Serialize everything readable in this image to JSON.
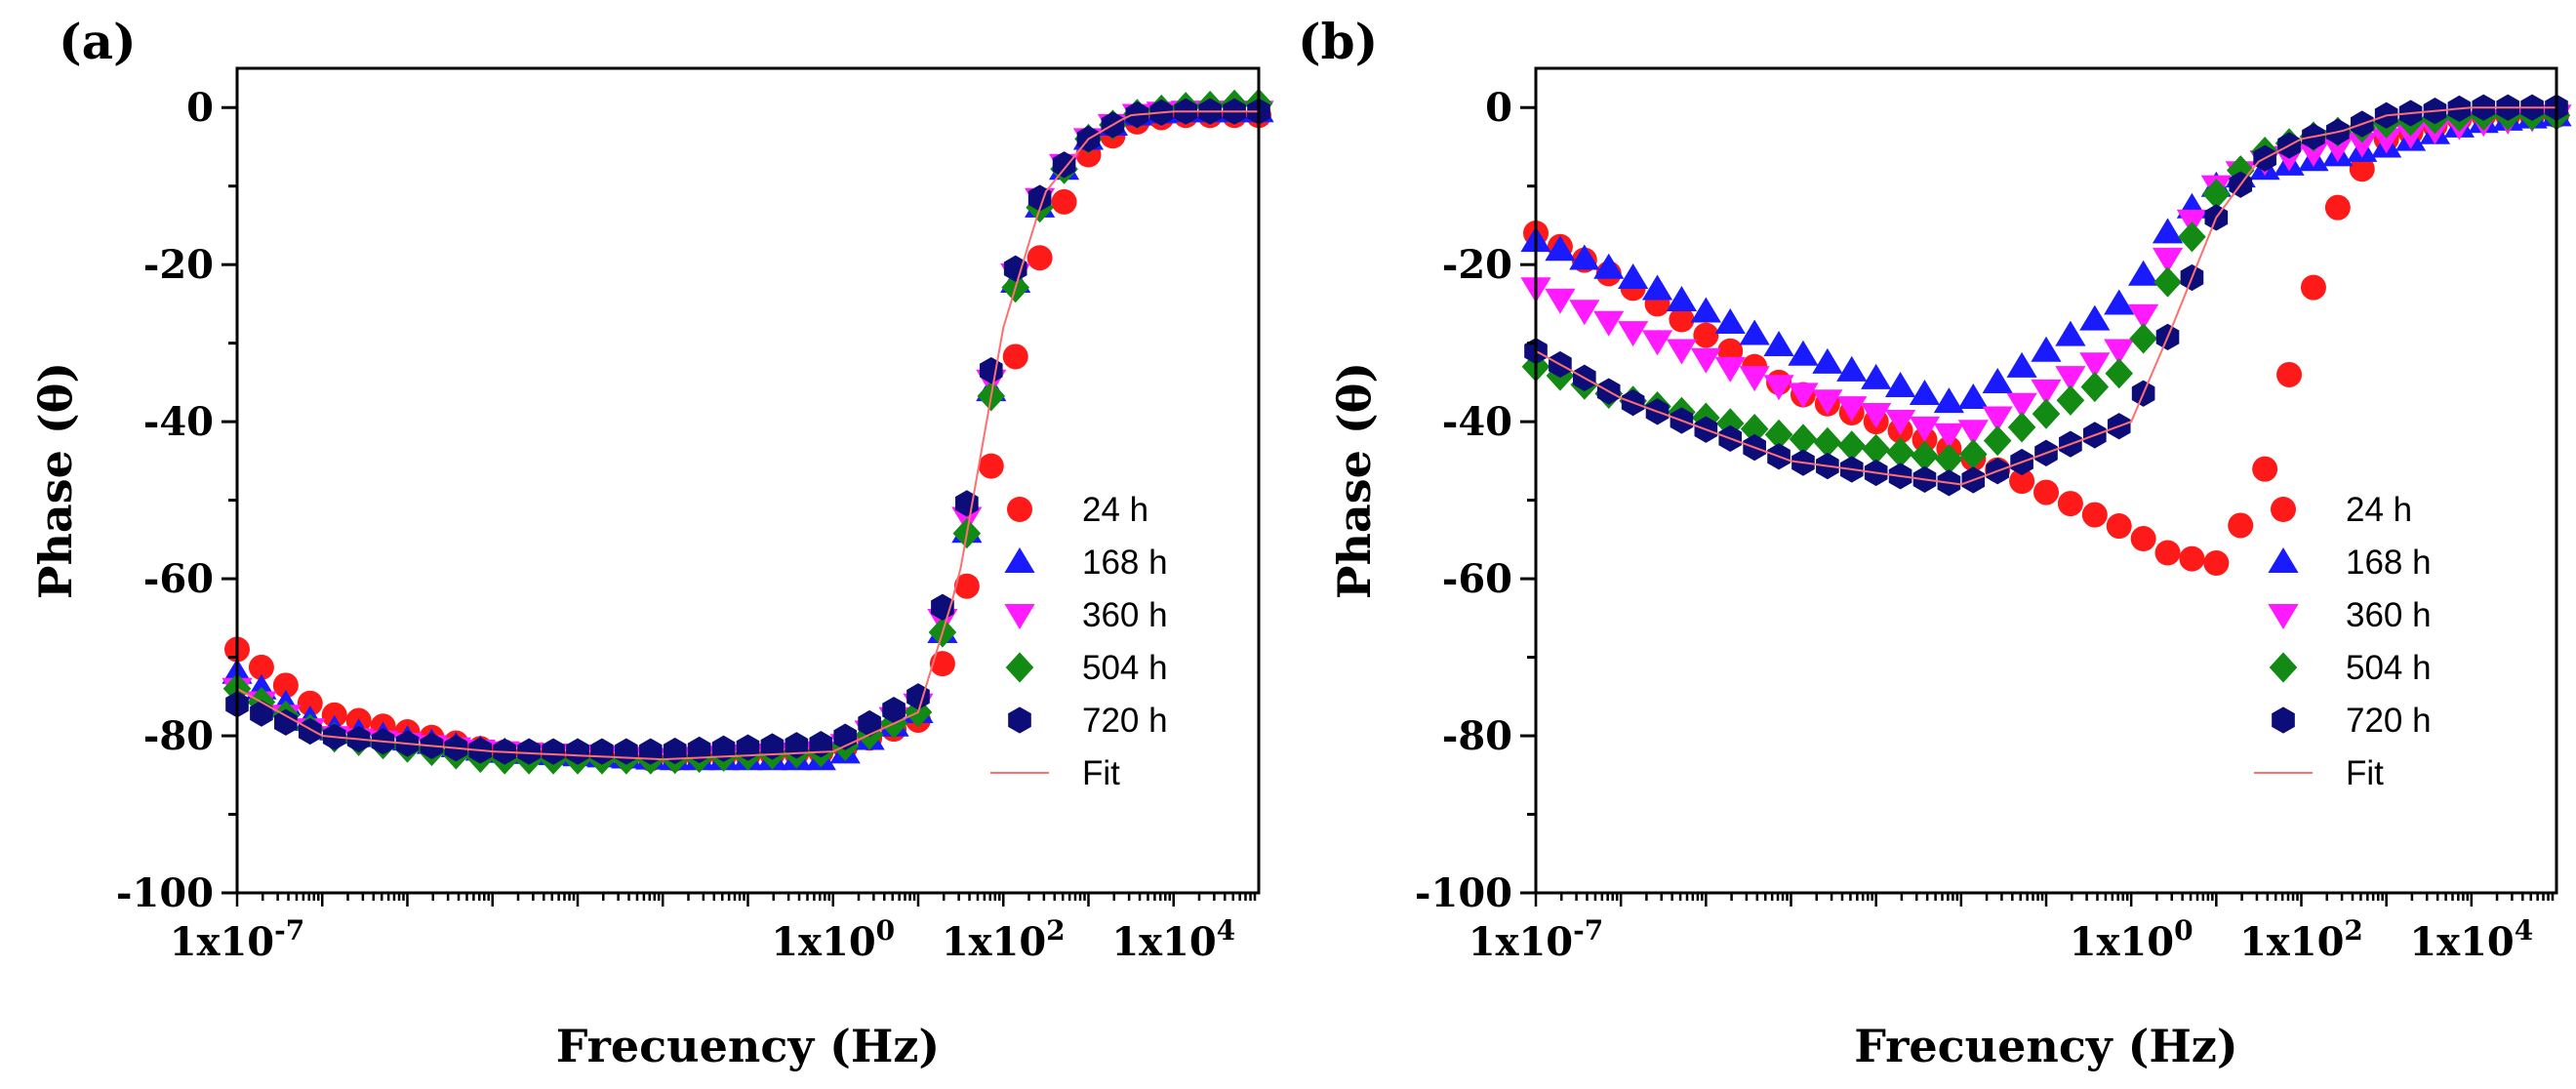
{
  "chart_data": [
    {
      "type": "scatter",
      "panel_label": "(a)",
      "xlabel": "Frecuency (Hz)",
      "ylabel": "Phase (θ)",
      "xscale": "log",
      "xlim": [
        1e-07,
        100000.0
      ],
      "ylim": [
        -100,
        5
      ],
      "x_ticks": [
        1e-07,
        1,
        100,
        10000
      ],
      "x_tick_labels": [
        "1x10-7",
        "1x100",
        "1x102",
        "1x104"
      ],
      "y_ticks": [
        0,
        -20,
        -40,
        -60,
        -80,
        -100
      ],
      "y_tick_labels": [
        "0",
        "-20",
        "-40",
        "-60",
        "-80",
        "-100"
      ],
      "legend_position": "center-right",
      "series": [
        {
          "name": "24 h",
          "color": "#ff1a1a",
          "marker": "circle",
          "x": [
            1e-07,
            1e-06,
            0.0001,
            0.01,
            1,
            10,
            30,
            100,
            300,
            1000,
            3000,
            10000.0,
            100000.0
          ],
          "y": [
            -69,
            -77,
            -82,
            -83,
            -82,
            -78,
            -66,
            -38,
            -17,
            -6,
            -2,
            -1,
            -1
          ]
        },
        {
          "name": "168 h",
          "color": "#1a1aff",
          "marker": "triangle-up",
          "x": [
            1e-07,
            1e-06,
            0.0001,
            0.01,
            1,
            10,
            30,
            100,
            300,
            1000,
            3000,
            10000.0,
            100000.0
          ],
          "y": [
            -72,
            -79,
            -82,
            -83,
            -83,
            -77,
            -60,
            -27,
            -11,
            -4,
            -1,
            -0.5,
            -0.5
          ]
        },
        {
          "name": "360 h",
          "color": "#ff1aff",
          "marker": "triangle-down",
          "x": [
            1e-07,
            1e-06,
            0.0001,
            0.01,
            1,
            10,
            30,
            100,
            300,
            1000,
            3000,
            10000.0,
            100000.0
          ],
          "y": [
            -74,
            -80,
            -82,
            -83,
            -82,
            -76,
            -58,
            -26,
            -10,
            -4,
            -1,
            -0.5,
            -0.5
          ]
        },
        {
          "name": "504 h",
          "color": "#138a13",
          "marker": "diamond",
          "x": [
            1e-07,
            1e-06,
            0.0001,
            0.01,
            1,
            10,
            30,
            100,
            300,
            1000,
            3000,
            10000.0,
            100000.0
          ],
          "y": [
            -74,
            -80,
            -83,
            -83,
            -82,
            -77,
            -60,
            -28,
            -11,
            -4,
            -1,
            0,
            0.5
          ]
        },
        {
          "name": "720 h",
          "color": "#0d0d7a",
          "marker": "hexagon",
          "x": [
            1e-07,
            1e-06,
            0.0001,
            0.01,
            1,
            10,
            30,
            100,
            300,
            1000,
            3000,
            10000.0,
            100000.0
          ],
          "y": [
            -76,
            -80,
            -82,
            -82,
            -81,
            -75,
            -56,
            -25,
            -10,
            -4,
            -1,
            -0.5,
            -0.5
          ]
        },
        {
          "name": "Fit",
          "color": "#ff6f6f",
          "marker": "line",
          "x": [
            1e-07,
            1e-06,
            0.0001,
            0.01,
            1,
            10,
            30,
            100,
            300,
            1000,
            3000,
            10000.0,
            100000.0
          ],
          "y": [
            -74,
            -80,
            -82,
            -83,
            -82,
            -77,
            -60,
            -28,
            -11,
            -4,
            -1,
            -0.5,
            -0.5
          ]
        }
      ]
    },
    {
      "type": "scatter",
      "panel_label": "(b)",
      "xlabel": "Frecuency (Hz)",
      "ylabel": "Phase (θ)",
      "xscale": "log",
      "xlim": [
        1e-07,
        100000.0
      ],
      "ylim": [
        -100,
        5
      ],
      "x_ticks": [
        1e-07,
        1,
        100,
        10000
      ],
      "x_tick_labels": [
        "1x10-7",
        "1x100",
        "1x102",
        "1x104"
      ],
      "y_ticks": [
        0,
        -20,
        -40,
        -60,
        -80,
        -100
      ],
      "y_tick_labels": [
        "0",
        "-20",
        "-40",
        "-60",
        "-80",
        "-100"
      ],
      "legend_position": "center-right",
      "series": [
        {
          "name": "24 h",
          "color": "#ff1a1a",
          "marker": "circle",
          "x": [
            1e-07,
            1e-06,
            0.0001,
            0.01,
            1,
            3,
            10,
            30,
            100,
            300,
            1000,
            10000.0,
            100000.0
          ],
          "y": [
            -16,
            -22,
            -36,
            -44,
            -54,
            -57,
            -58,
            -50,
            -28,
            -11,
            -4,
            -1,
            -1
          ]
        },
        {
          "name": "168 h",
          "color": "#1a1aff",
          "marker": "triangle-up",
          "x": [
            1e-07,
            1e-06,
            0.0001,
            0.01,
            1,
            3,
            10,
            30,
            100,
            300,
            1000,
            10000.0,
            100000.0
          ],
          "y": [
            -17,
            -21,
            -31,
            -38,
            -24,
            -15,
            -10,
            -8,
            -7,
            -6,
            -5,
            -2,
            -1
          ]
        },
        {
          "name": "360 h",
          "color": "#ff1aff",
          "marker": "triangle-down",
          "x": [
            1e-07,
            1e-06,
            0.0001,
            0.01,
            1,
            3,
            10,
            30,
            100,
            300,
            1000,
            10000.0,
            100000.0
          ],
          "y": [
            -23,
            -28,
            -36,
            -42,
            -30,
            -18,
            -10,
            -7,
            -6,
            -5,
            -4,
            -2,
            -1
          ]
        },
        {
          "name": "504 h",
          "color": "#138a13",
          "marker": "diamond",
          "x": [
            1e-07,
            1e-06,
            0.0001,
            0.01,
            1,
            3,
            10,
            30,
            100,
            300,
            1000,
            10000.0,
            100000.0
          ],
          "y": [
            -33,
            -37,
            -42,
            -45,
            -33,
            -21,
            -11,
            -6,
            -4,
            -3,
            -2,
            -1,
            -1
          ]
        },
        {
          "name": "720 h",
          "color": "#0d0d7a",
          "marker": "hexagon",
          "x": [
            1e-07,
            1e-06,
            0.0001,
            0.01,
            1,
            3,
            10,
            30,
            100,
            300,
            1000,
            10000.0,
            100000.0
          ],
          "y": [
            -31,
            -37,
            -45,
            -48,
            -40,
            -28,
            -14,
            -7,
            -4,
            -3,
            -1,
            0,
            0
          ]
        },
        {
          "name": "Fit",
          "color": "#ff6f6f",
          "marker": "line",
          "x": [
            1e-07,
            1e-06,
            0.0001,
            0.01,
            1,
            3,
            10,
            30,
            100,
            300,
            1000,
            10000.0,
            100000.0
          ],
          "y": [
            -31,
            -37,
            -45,
            -48,
            -40,
            -28,
            -14,
            -7,
            -4,
            -3,
            -1,
            0,
            0
          ]
        }
      ]
    }
  ]
}
